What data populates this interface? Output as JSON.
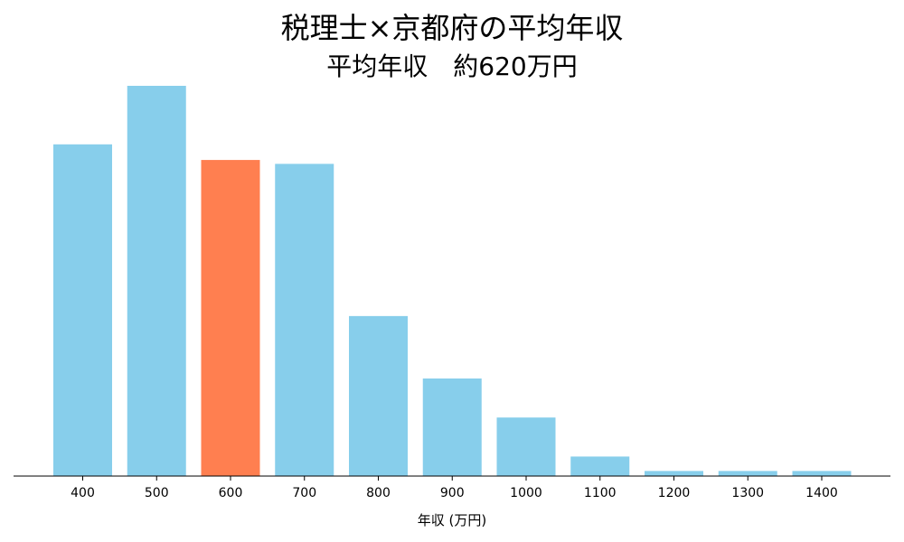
{
  "chart_data": {
    "type": "bar",
    "title": "税理士×京都府の平均年収",
    "subtitle": "平均年収　約620万円",
    "xlabel": "年収 (万円)",
    "ylabel": "",
    "categories": [
      "400",
      "500",
      "600",
      "700",
      "800",
      "900",
      "1000",
      "1100",
      "1200",
      "1300",
      "1400"
    ],
    "values": [
      0.85,
      1.0,
      0.81,
      0.8,
      0.41,
      0.25,
      0.15,
      0.05,
      0.013,
      0.013,
      0.013
    ],
    "highlight_category": "600",
    "ylim": [
      0,
      1.05
    ],
    "grid": false,
    "legend": "none",
    "colors": {
      "bar": "#87ceeb",
      "highlight": "#ff7f50",
      "axis": "#000000"
    }
  }
}
